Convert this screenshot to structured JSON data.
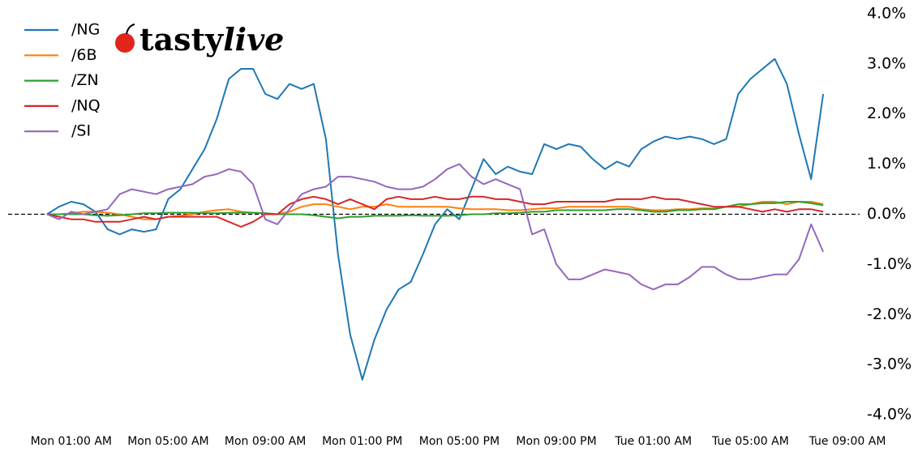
{
  "chart_data": {
    "type": "line",
    "watermark": [
      "tasty",
      "live"
    ],
    "legend": "upper left",
    "zero_line": true,
    "x": [
      0,
      0.5,
      1,
      1.5,
      2,
      2.5,
      3,
      3.5,
      4,
      4.5,
      5,
      5.5,
      6,
      6.5,
      7,
      7.5,
      8,
      8.5,
      9,
      9.5,
      10,
      10.5,
      11,
      11.5,
      12,
      12.5,
      13,
      13.5,
      14,
      14.5,
      15,
      15.5,
      16,
      16.5,
      17,
      17.5,
      18,
      18.5,
      19,
      19.5,
      20,
      20.5,
      21,
      21.5,
      22,
      22.5,
      23,
      23.5,
      24,
      24.5,
      25,
      25.5,
      26,
      26.5,
      27,
      27.5,
      28,
      28.5,
      29,
      29.5,
      30,
      30.5,
      31,
      31.5,
      32
    ],
    "xlim": [
      -1.5,
      33.5
    ],
    "xticks": [
      {
        "value": 1,
        "label": "Mon 01:00 AM"
      },
      {
        "value": 5,
        "label": "Mon 05:00 AM"
      },
      {
        "value": 9,
        "label": "Mon 09:00 AM"
      },
      {
        "value": 13,
        "label": "Mon 01:00 PM"
      },
      {
        "value": 17,
        "label": "Mon 05:00 PM"
      },
      {
        "value": 21,
        "label": "Mon 09:00 PM"
      },
      {
        "value": 25,
        "label": "Tue 01:00 AM"
      },
      {
        "value": 29,
        "label": "Tue 05:00 AM"
      },
      {
        "value": 33,
        "label": "Tue 09:00 AM"
      }
    ],
    "ylim": [
      -4.2,
      4.2
    ],
    "yticks": [
      {
        "value": 4,
        "label": "4.0%"
      },
      {
        "value": 3,
        "label": "3.0%"
      },
      {
        "value": 2,
        "label": "2.0%"
      },
      {
        "value": 1,
        "label": "1.0%"
      },
      {
        "value": 0,
        "label": "0.0%"
      },
      {
        "value": -1,
        "label": "-1.0%"
      },
      {
        "value": -2,
        "label": "-2.0%"
      },
      {
        "value": -3,
        "label": "-3.0%"
      },
      {
        "value": -4,
        "label": "-4.0%"
      }
    ],
    "series": [
      {
        "name": "/NG",
        "color": "#1f77b4",
        "values": [
          0,
          0.15,
          0.25,
          0.2,
          0.05,
          -0.3,
          -0.4,
          -0.3,
          -0.35,
          -0.3,
          0.3,
          0.5,
          0.9,
          1.3,
          1.9,
          2.7,
          2.9,
          2.9,
          2.4,
          2.3,
          2.6,
          2.5,
          2.6,
          1.5,
          -0.8,
          -2.4,
          -3.3,
          -2.5,
          -1.9,
          -1.5,
          -1.35,
          -0.8,
          -0.2,
          0.1,
          -0.1,
          0.5,
          1.1,
          0.8,
          0.95,
          0.85,
          0.8,
          1.4,
          1.3,
          1.4,
          1.35,
          1.1,
          0.9,
          1.05,
          0.95,
          1.3,
          1.45,
          1.55,
          1.5,
          1.55,
          1.5,
          1.4,
          1.5,
          2.4,
          2.7,
          2.9,
          3.1,
          2.6,
          1.6,
          0.7,
          2.4
        ]
      },
      {
        "name": "/6B",
        "color": "#ff7f0e",
        "values": [
          0,
          0,
          0.02,
          0.05,
          0.05,
          0.03,
          0,
          -0.05,
          -0.1,
          -0.1,
          -0.05,
          -0.03,
          0,
          0.05,
          0.08,
          0.1,
          0.05,
          0.03,
          0.02,
          0,
          0.05,
          0.15,
          0.2,
          0.2,
          0.15,
          0.1,
          0.15,
          0.15,
          0.2,
          0.15,
          0.15,
          0.15,
          0.15,
          0.15,
          0.12,
          0.1,
          0.1,
          0.1,
          0.08,
          0.08,
          0.1,
          0.12,
          0.12,
          0.15,
          0.15,
          0.15,
          0.15,
          0.15,
          0.15,
          0.1,
          0.08,
          0.08,
          0.1,
          0.1,
          0.12,
          0.12,
          0.15,
          0.15,
          0.2,
          0.25,
          0.25,
          0.2,
          0.25,
          0.25,
          0.2
        ]
      },
      {
        "name": "/ZN",
        "color": "#2ca02c",
        "values": [
          0,
          0,
          0,
          0,
          -0.02,
          -0.03,
          -0.02,
          0,
          0.02,
          0.02,
          0.03,
          0.03,
          0.03,
          0.02,
          0.02,
          0.03,
          0.03,
          0.03,
          0.02,
          0,
          0,
          0,
          -0.02,
          -0.05,
          -0.08,
          -0.05,
          -0.05,
          -0.03,
          -0.03,
          -0.03,
          -0.02,
          -0.03,
          -0.03,
          -0.03,
          -0.02,
          0,
          0,
          0.02,
          0.02,
          0.03,
          0.05,
          0.05,
          0.08,
          0.08,
          0.08,
          0.08,
          0.08,
          0.1,
          0.1,
          0.08,
          0.05,
          0.05,
          0.08,
          0.08,
          0.1,
          0.1,
          0.15,
          0.2,
          0.2,
          0.22,
          0.22,
          0.25,
          0.25,
          0.22,
          0.18
        ]
      },
      {
        "name": "/NQ",
        "color": "#d62728",
        "values": [
          0,
          -0.05,
          -0.1,
          -0.1,
          -0.15,
          -0.15,
          -0.15,
          -0.1,
          -0.05,
          -0.1,
          -0.05,
          -0.05,
          -0.05,
          -0.05,
          -0.05,
          -0.15,
          -0.25,
          -0.15,
          0,
          0,
          0.2,
          0.3,
          0.35,
          0.3,
          0.2,
          0.3,
          0.2,
          0.1,
          0.3,
          0.35,
          0.3,
          0.3,
          0.35,
          0.3,
          0.3,
          0.35,
          0.35,
          0.3,
          0.3,
          0.25,
          0.2,
          0.2,
          0.25,
          0.25,
          0.25,
          0.25,
          0.25,
          0.3,
          0.3,
          0.3,
          0.35,
          0.3,
          0.3,
          0.25,
          0.2,
          0.15,
          0.15,
          0.15,
          0.1,
          0.05,
          0.1,
          0.05,
          0.1,
          0.1,
          0.05
        ]
      },
      {
        "name": "/SI",
        "color": "#9467bd",
        "values": [
          0,
          -0.1,
          0.05,
          0,
          0.05,
          0.1,
          0.4,
          0.5,
          0.45,
          0.4,
          0.5,
          0.55,
          0.6,
          0.75,
          0.8,
          0.9,
          0.85,
          0.6,
          -0.1,
          -0.2,
          0.1,
          0.4,
          0.5,
          0.55,
          0.75,
          0.75,
          0.7,
          0.65,
          0.55,
          0.5,
          0.5,
          0.55,
          0.7,
          0.9,
          1.0,
          0.75,
          0.6,
          0.7,
          0.6,
          0.5,
          -0.4,
          -0.3,
          -1.0,
          -1.3,
          -1.3,
          -1.2,
          -1.1,
          -1.15,
          -1.2,
          -1.4,
          -1.5,
          -1.4,
          -1.4,
          -1.25,
          -1.05,
          -1.05,
          -1.2,
          -1.3,
          -1.3,
          -1.25,
          -1.2,
          -1.2,
          -0.9,
          -0.2,
          -0.75
        ]
      }
    ]
  }
}
